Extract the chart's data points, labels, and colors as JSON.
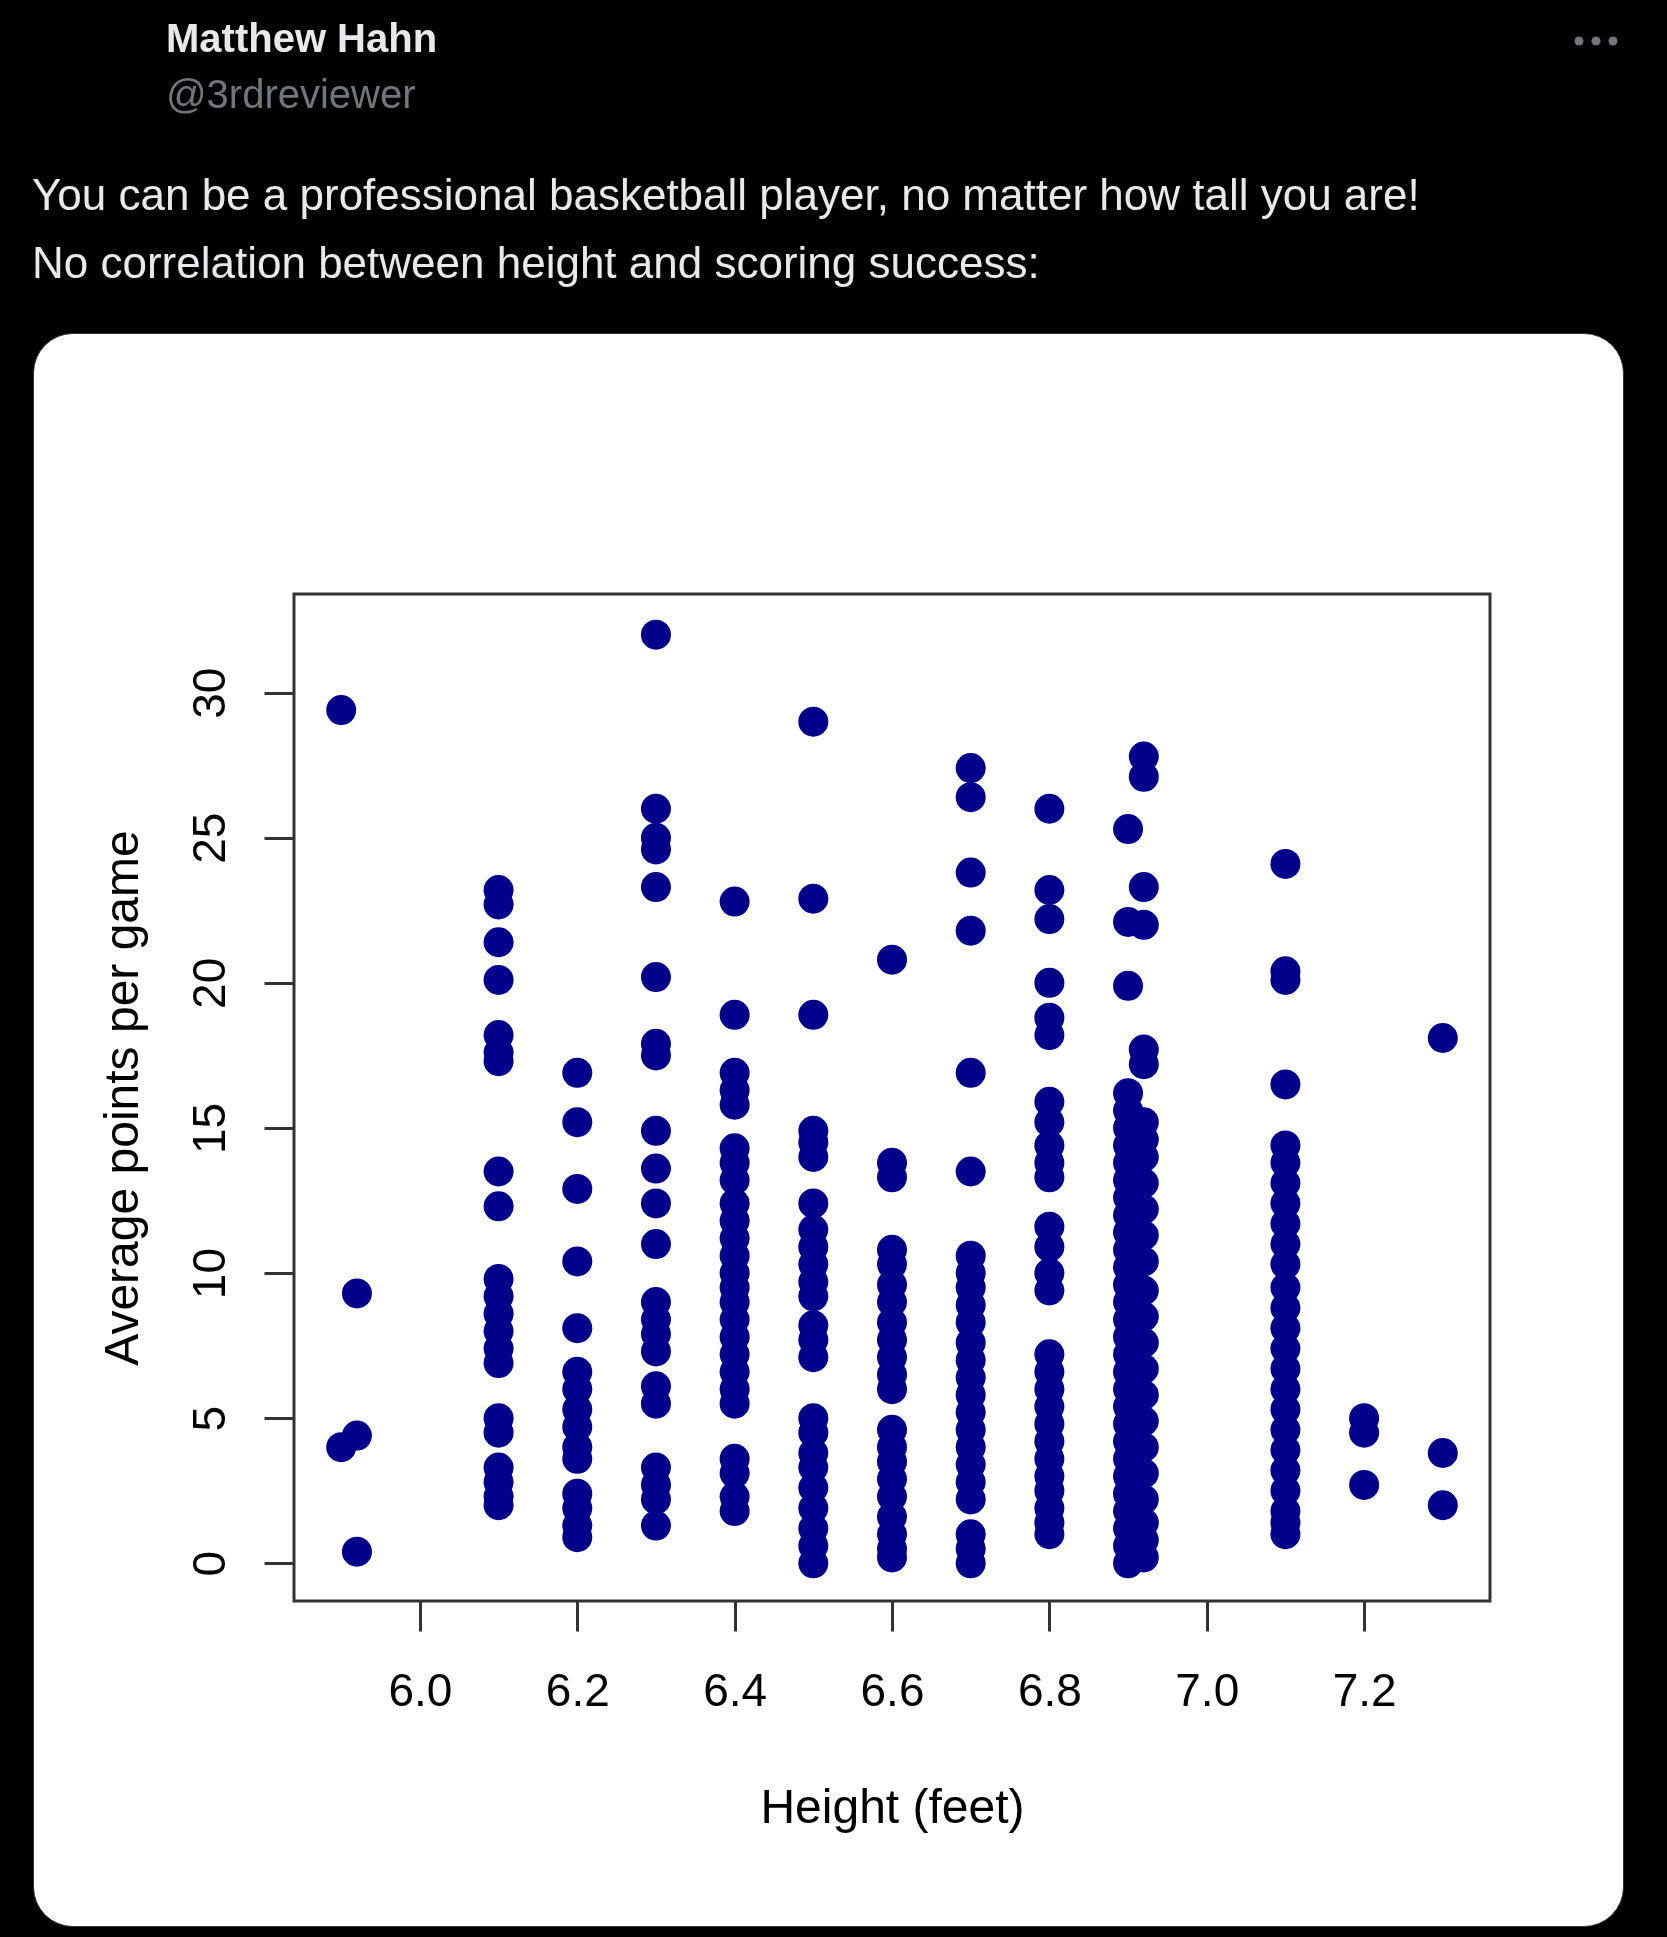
{
  "chart_data": {
    "type": "scatter",
    "title": "You can be a professional basketball player, no matter how tall you are!",
    "subtitle": "No correlation between height and scoring success:",
    "annotations": [
      "Matthew Hahn",
      "@3rdreviewer"
    ],
    "xlabel": "Height (feet)",
    "ylabel": "Average points per game",
    "xlim": [
      5.84,
      7.36
    ],
    "ylim": [
      -1.3,
      33.4
    ],
    "xticks": [
      {
        "value": 6,
        "label": "6.0"
      },
      {
        "value": 6.2,
        "label": "6.2"
      },
      {
        "value": 6.4,
        "label": "6.4"
      },
      {
        "value": 6.6,
        "label": "6.6"
      },
      {
        "value": 6.8,
        "label": "6.8"
      },
      {
        "value": 7,
        "label": "7.0"
      },
      {
        "value": 7.2,
        "label": "7.2"
      }
    ],
    "yticks": [
      0,
      5,
      10,
      15,
      20,
      25,
      30
    ],
    "grid": false,
    "legend": false,
    "marker": "circle",
    "series": [
      {
        "color": "#00008b",
        "x": [
          5.9,
          5.9,
          5.92,
          5.92,
          5.92,
          6.1,
          6.1,
          6.1,
          6.1,
          6.1,
          6.1,
          6.1,
          6.1,
          6.1,
          6.1,
          6.1,
          6.1,
          6.1,
          6.1,
          6.1,
          6.1,
          6.1,
          6.1,
          6.1,
          6.1,
          6.1,
          6.2,
          6.2,
          6.2,
          6.2,
          6.2,
          6.2,
          6.2,
          6.2,
          6.2,
          6.2,
          6.2,
          6.2,
          6.2,
          6.2,
          6.2,
          6.3,
          6.3,
          6.3,
          6.3,
          6.3,
          6.3,
          6.3,
          6.3,
          6.3,
          6.3,
          6.3,
          6.3,
          6.3,
          6.3,
          6.3,
          6.3,
          6.3,
          6.3,
          6.3,
          6.3,
          6.3,
          6.3,
          6.4,
          6.4,
          6.4,
          6.4,
          6.4,
          6.4,
          6.4,
          6.4,
          6.4,
          6.4,
          6.4,
          6.4,
          6.4,
          6.4,
          6.4,
          6.4,
          6.4,
          6.4,
          6.4,
          6.4,
          6.4,
          6.4,
          6.4,
          6.4,
          6.4,
          6.5,
          6.5,
          6.5,
          6.5,
          6.5,
          6.5,
          6.5,
          6.5,
          6.5,
          6.5,
          6.5,
          6.5,
          6.5,
          6.5,
          6.5,
          6.5,
          6.5,
          6.5,
          6.5,
          6.5,
          6.5,
          6.5,
          6.5,
          6.5,
          6.6,
          6.6,
          6.6,
          6.6,
          6.6,
          6.6,
          6.6,
          6.6,
          6.6,
          6.6,
          6.6,
          6.6,
          6.6,
          6.6,
          6.6,
          6.6,
          6.6,
          6.6,
          6.6,
          6.6,
          6.6,
          6.7,
          6.7,
          6.7,
          6.7,
          6.7,
          6.7,
          6.7,
          6.7,
          6.7,
          6.7,
          6.7,
          6.7,
          6.7,
          6.7,
          6.7,
          6.7,
          6.7,
          6.7,
          6.7,
          6.7,
          6.7,
          6.7,
          6.7,
          6.7,
          6.8,
          6.8,
          6.8,
          6.8,
          6.8,
          6.8,
          6.8,
          6.8,
          6.8,
          6.8,
          6.8,
          6.8,
          6.8,
          6.8,
          6.8,
          6.8,
          6.8,
          6.8,
          6.8,
          6.8,
          6.8,
          6.8,
          6.8,
          6.8,
          6.8,
          6.8,
          6.8,
          6.9,
          6.9,
          6.9,
          6.9,
          6.9,
          6.9,
          6.9,
          6.9,
          6.9,
          6.9,
          6.9,
          6.9,
          6.9,
          6.9,
          6.9,
          6.9,
          6.9,
          6.9,
          6.9,
          6.9,
          6.9,
          6.9,
          6.9,
          6.9,
          6.9,
          6.9,
          6.9,
          6.9,
          6.9,
          6.9,
          6.9,
          6.92,
          6.92,
          6.92,
          6.92,
          6.92,
          6.92,
          6.92,
          6.92,
          6.92,
          6.92,
          6.92,
          6.92,
          6.92,
          6.92,
          6.92,
          6.92,
          6.92,
          6.92,
          6.92,
          6.92,
          6.92,
          6.92,
          6.92,
          6.92,
          6.92,
          7.1,
          7.1,
          7.1,
          7.1,
          7.1,
          7.1,
          7.1,
          7.1,
          7.1,
          7.1,
          7.1,
          7.1,
          7.1,
          7.1,
          7.1,
          7.1,
          7.1,
          7.1,
          7.1,
          7.1,
          7.1,
          7.1,
          7.1,
          7.1,
          7.1,
          7.2,
          7.2,
          7.2,
          7.3,
          7.3,
          7.3
        ],
        "values": [
          29.4,
          4.0,
          9.3,
          4.4,
          0.4,
          23.2,
          22.7,
          21.4,
          20.1,
          18.2,
          17.6,
          17.3,
          13.5,
          12.3,
          9.8,
          9.2,
          8.6,
          8.0,
          7.4,
          6.9,
          5.0,
          4.5,
          3.3,
          2.8,
          2.3,
          2.0,
          16.9,
          15.2,
          12.9,
          10.4,
          8.1,
          6.6,
          6.0,
          5.3,
          4.7,
          4.0,
          3.6,
          2.4,
          1.9,
          1.3,
          0.9,
          32.0,
          26.0,
          25.0,
          24.6,
          23.3,
          20.2,
          17.9,
          17.5,
          14.9,
          13.6,
          12.4,
          11.0,
          9.0,
          8.4,
          7.9,
          7.3,
          6.1,
          5.5,
          3.3,
          2.7,
          2.2,
          1.3,
          22.8,
          18.9,
          16.9,
          16.3,
          15.8,
          14.3,
          13.8,
          13.2,
          12.4,
          11.8,
          11.2,
          10.6,
          10.0,
          9.5,
          9.0,
          8.4,
          7.8,
          7.2,
          6.6,
          6.0,
          5.5,
          3.6,
          3.1,
          2.3,
          1.8,
          29.0,
          22.9,
          18.9,
          14.9,
          14.5,
          14.0,
          12.4,
          11.5,
          10.9,
          10.3,
          9.7,
          9.2,
          8.2,
          7.7,
          7.1,
          5.0,
          4.5,
          3.8,
          3.3,
          2.6,
          1.9,
          1.2,
          0.6,
          0.0,
          20.8,
          13.8,
          13.3,
          10.8,
          10.3,
          9.6,
          9.0,
          8.3,
          7.7,
          7.1,
          6.5,
          6.0,
          4.6,
          4.0,
          3.5,
          2.9,
          2.3,
          1.6,
          1.0,
          0.5,
          0.2,
          27.4,
          26.4,
          23.8,
          21.8,
          16.9,
          13.5,
          10.6,
          10.0,
          9.5,
          8.9,
          8.3,
          7.6,
          7.0,
          6.4,
          5.8,
          5.2,
          4.6,
          4.0,
          3.4,
          2.8,
          2.2,
          1.0,
          0.5,
          0.0,
          26.0,
          23.2,
          22.2,
          20.0,
          18.8,
          18.2,
          15.9,
          15.2,
          14.4,
          13.8,
          13.3,
          11.6,
          10.9,
          10.0,
          9.4,
          7.2,
          6.6,
          6.0,
          5.4,
          4.8,
          4.2,
          3.6,
          3.0,
          2.5,
          1.9,
          1.4,
          1.0,
          25.3,
          22.1,
          19.9,
          16.2,
          15.6,
          15.0,
          14.4,
          13.8,
          13.2,
          12.6,
          12.0,
          11.4,
          10.8,
          10.2,
          9.6,
          9.0,
          8.4,
          7.8,
          7.2,
          6.6,
          6.0,
          5.4,
          4.8,
          4.2,
          3.6,
          3.0,
          2.4,
          1.8,
          1.2,
          0.6,
          0.0,
          27.8,
          27.1,
          23.3,
          22.0,
          17.7,
          17.2,
          15.2,
          14.6,
          14.0,
          13.1,
          12.2,
          11.3,
          10.4,
          9.4,
          8.5,
          7.6,
          6.7,
          5.8,
          4.9,
          4.0,
          3.1,
          2.2,
          1.4,
          0.8,
          0.2,
          24.1,
          20.4,
          20.1,
          16.5,
          14.4,
          13.8,
          13.1,
          12.4,
          11.7,
          11.0,
          10.3,
          9.5,
          8.8,
          8.1,
          7.4,
          6.7,
          6.0,
          5.3,
          4.6,
          3.9,
          3.2,
          2.5,
          1.8,
          1.4,
          1.0,
          5.0,
          4.5,
          2.7,
          18.1,
          3.8,
          2.0
        ]
      }
    ]
  }
}
